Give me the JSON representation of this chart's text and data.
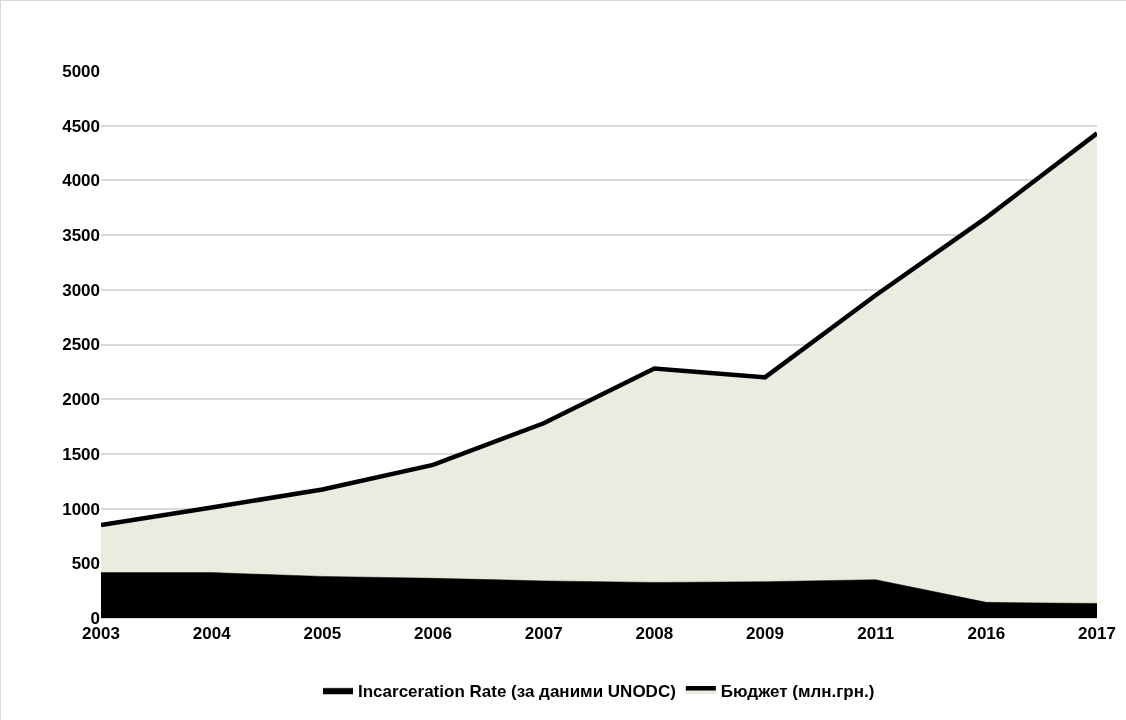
{
  "chart_data": {
    "type": "area",
    "categories": [
      "2003",
      "2004",
      "2005",
      "2006",
      "2007",
      "2008",
      "2009",
      "2011",
      "2016",
      "2017"
    ],
    "series": [
      {
        "name": "Incarceration Rate (за даними UNODC)",
        "color": "#000000",
        "values": [
          415,
          415,
          380,
          363,
          339,
          325,
          332,
          350,
          143,
          133
        ]
      },
      {
        "name": "Бюджет (млн.грн.)",
        "color": "#ecebe0",
        "values": [
          850,
          1010,
          1175,
          1400,
          1780,
          2280,
          2200,
          2950,
          3660,
          4430
        ]
      }
    ],
    "ylim": [
      0,
      5000
    ],
    "yticks": [
      0,
      500,
      1000,
      1500,
      2000,
      2500,
      3000,
      3500,
      4000,
      4500,
      5000
    ],
    "grid": "y",
    "legend": "bottom"
  }
}
